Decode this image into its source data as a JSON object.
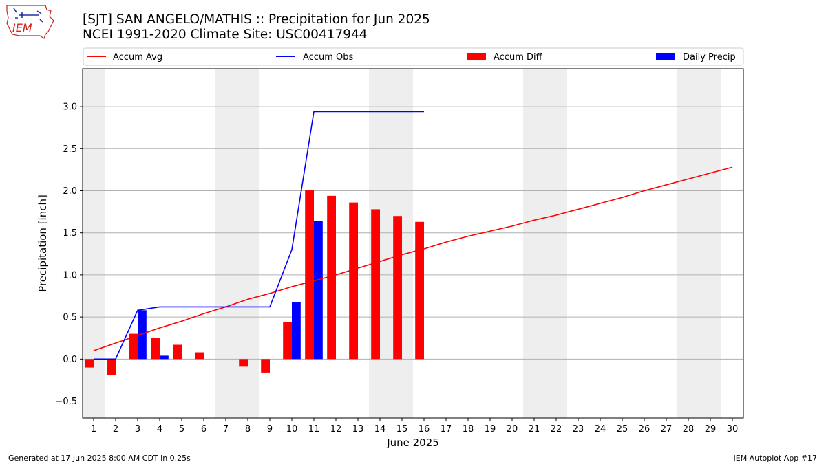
{
  "header": {
    "title": "[SJT] SAN ANGELO/MATHIS :: Precipitation for Jun 2025",
    "subtitle": "NCEI 1991-2020 Climate Site: USC00417944"
  },
  "logo": {
    "text": "IEM"
  },
  "footer": {
    "generated": "Generated at 17 Jun 2025 8:00 AM CDT in 0.25s",
    "app": "IEM Autoplot App #17"
  },
  "chart_data": {
    "type": "bar",
    "xlabel": "June 2025",
    "ylabel": "Precipitation [inch]",
    "xlim": [
      0.5,
      30.5
    ],
    "ylim": [
      -0.7,
      3.45
    ],
    "x_ticks": [
      1,
      2,
      3,
      4,
      5,
      6,
      7,
      8,
      9,
      10,
      11,
      12,
      13,
      14,
      15,
      16,
      17,
      18,
      19,
      20,
      21,
      22,
      23,
      24,
      25,
      26,
      27,
      28,
      29,
      30
    ],
    "y_ticks": [
      -0.5,
      0.0,
      0.5,
      1.0,
      1.5,
      2.0,
      2.5,
      3.0
    ],
    "y_tick_labels": [
      "−0.5",
      "0.0",
      "0.5",
      "1.0",
      "1.5",
      "2.0",
      "2.5",
      "3.0"
    ],
    "grid": "horizontal",
    "legend_position": "top",
    "weekend_shading": [
      [
        0.5,
        1.5
      ],
      [
        6.5,
        8.5
      ],
      [
        13.5,
        15.5
      ],
      [
        20.5,
        22.5
      ],
      [
        27.5,
        29.5
      ]
    ],
    "colors": {
      "avg": "#ff0000",
      "obs": "#0000ff",
      "diff": "#ff0000",
      "daily": "#0000ff",
      "shade": "#eeeeee",
      "grid": "#b0b0b0"
    },
    "legend": [
      {
        "label": "Accum Avg",
        "kind": "line",
        "color": "#ff0000"
      },
      {
        "label": "Accum Obs",
        "kind": "line",
        "color": "#0000ff"
      },
      {
        "label": "Accum Diff",
        "kind": "bar",
        "color": "#ff0000"
      },
      {
        "label": "Daily Precip",
        "kind": "bar",
        "color": "#0000ff"
      }
    ],
    "series": [
      {
        "name": "Accum Avg",
        "type": "line",
        "x": [
          1,
          2,
          3,
          4,
          5,
          6,
          7,
          8,
          9,
          10,
          11,
          12,
          13,
          14,
          15,
          16,
          17,
          18,
          19,
          20,
          21,
          22,
          23,
          24,
          25,
          26,
          27,
          28,
          29,
          30
        ],
        "values": [
          0.1,
          0.19,
          0.28,
          0.37,
          0.45,
          0.54,
          0.62,
          0.71,
          0.78,
          0.86,
          0.93,
          1.0,
          1.08,
          1.16,
          1.24,
          1.31,
          1.39,
          1.46,
          1.52,
          1.58,
          1.65,
          1.71,
          1.78,
          1.85,
          1.92,
          2.0,
          2.07,
          2.14,
          2.21,
          2.28
        ]
      },
      {
        "name": "Accum Obs",
        "type": "line",
        "x": [
          1,
          2,
          3,
          4,
          5,
          6,
          7,
          8,
          9,
          10,
          11,
          12,
          13,
          14,
          15,
          16
        ],
        "values": [
          0.0,
          0.0,
          0.58,
          0.62,
          0.62,
          0.62,
          0.62,
          0.62,
          0.62,
          1.3,
          2.94,
          2.94,
          2.94,
          2.94,
          2.94,
          2.94
        ]
      },
      {
        "name": "Accum Diff",
        "type": "bar",
        "x": [
          1,
          2,
          3,
          4,
          5,
          6,
          7,
          8,
          9,
          10,
          11,
          12,
          13,
          14,
          15,
          16
        ],
        "values": [
          -0.1,
          -0.19,
          0.3,
          0.25,
          0.17,
          0.08,
          0.0,
          -0.09,
          -0.16,
          0.44,
          2.01,
          1.94,
          1.86,
          1.78,
          1.7,
          1.63
        ]
      },
      {
        "name": "Daily Precip",
        "type": "bar",
        "x": [
          1,
          2,
          3,
          4,
          5,
          6,
          7,
          8,
          9,
          10,
          11,
          12,
          13,
          14,
          15,
          16
        ],
        "values": [
          0.0,
          0.0,
          0.58,
          0.04,
          0.0,
          0.0,
          0.0,
          0.0,
          0.0,
          0.68,
          1.64,
          0.0,
          0.0,
          0.0,
          0.0,
          0.0
        ]
      }
    ]
  }
}
